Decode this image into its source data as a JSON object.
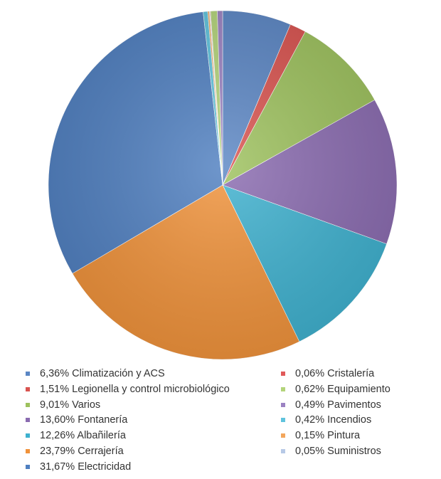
{
  "chart_data": {
    "type": "pie",
    "slices": [
      {
        "label": "6,36% Climatización y ACS",
        "value": 6.36,
        "color": "#5b86c4"
      },
      {
        "label": "1,51% Legionella y control microbiológico",
        "value": 1.51,
        "color": "#d9534f"
      },
      {
        "label": "9,01% Varios",
        "value": 9.01,
        "color": "#9dc15d"
      },
      {
        "label": "13,60% Fontanería",
        "value": 13.6,
        "color": "#8a6bb0"
      },
      {
        "label": "12,26% Albañilería",
        "value": 12.26,
        "color": "#3eb1cf"
      },
      {
        "label": "23,79% Cerrajería",
        "value": 23.79,
        "color": "#f0923a"
      },
      {
        "label": "31,67% Electricidad",
        "value": 31.67,
        "color": "#4f7fc0"
      },
      {
        "label": "0,06% Cristalería",
        "value": 0.06,
        "color": "#e05a5a"
      },
      {
        "label": "0,62% Equipamiento",
        "value": 0.62,
        "color": "#b3d47a"
      },
      {
        "label": "0,49% Pavimentos",
        "value": 0.49,
        "color": "#9b82c2"
      },
      {
        "label": "0,42% Incendios",
        "value": 0.42,
        "color": "#5fc3dd"
      },
      {
        "label": "0,15% Pintura",
        "value": 0.15,
        "color": "#f3a65c"
      },
      {
        "label": "0,05% Suministros",
        "value": 0.05,
        "color": "#b7c9e6"
      }
    ],
    "legend_left": [
      "6,36% Climatización y ACS",
      "1,51% Legionella y control microbiológico",
      "9,01% Varios",
      "13,60% Fontanería",
      "12,26% Albañilería",
      "23,79% Cerrajería",
      "31,67% Electricidad"
    ],
    "legend_right": [
      "0,06% Cristalería",
      "0,62% Equipamiento",
      "0,49% Pavimentos",
      "0,42% Incendios",
      "0,15% Pintura",
      "0,05% Suministros"
    ],
    "legend_placement": "bottom",
    "start_angle_deg": 0,
    "direction": "clockwise"
  }
}
